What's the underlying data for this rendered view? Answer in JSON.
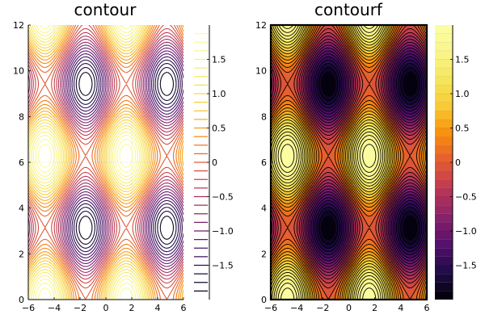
{
  "chart_data": [
    {
      "type": "contour",
      "title": "contour",
      "function": "sin(x) + cos(y)",
      "xlim": [
        -6,
        6
      ],
      "ylim": [
        0,
        12
      ],
      "xticks": [
        -6,
        -4,
        -2,
        0,
        2,
        4,
        6
      ],
      "yticks": [
        0,
        2,
        4,
        6,
        8,
        10,
        12
      ],
      "levels": [
        -1.875,
        -1.75,
        -1.625,
        -1.5,
        -1.375,
        -1.25,
        -1.125,
        -1.0,
        -0.875,
        -0.75,
        -0.625,
        -0.5,
        -0.375,
        -0.25,
        -0.125,
        0.0,
        0.125,
        0.25,
        0.375,
        0.5,
        0.625,
        0.75,
        0.875,
        1.0,
        1.125,
        1.25,
        1.375,
        1.5,
        1.625,
        1.75,
        1.875
      ],
      "filled": false,
      "colormap": "inferno",
      "colorbar": {
        "range": [
          -2,
          2
        ],
        "ticks": [
          -1.5,
          -1.0,
          -0.5,
          0,
          0.5,
          1.0,
          1.5
        ],
        "tick_labels": [
          "−1.5",
          "−1.0",
          "−0.5",
          "0",
          "0.5",
          "1.0",
          "1.5"
        ]
      },
      "tick_labels_x": [
        "−6",
        "−4",
        "−2",
        "0",
        "2",
        "4",
        "6"
      ],
      "tick_labels_y": [
        "0",
        "2",
        "4",
        "6",
        "8",
        "10",
        "12"
      ]
    },
    {
      "type": "contourf",
      "title": "contourf",
      "function": "sin(x) + cos(y)",
      "xlim": [
        -6,
        6
      ],
      "ylim": [
        0,
        12
      ],
      "xticks": [
        -6,
        -4,
        -2,
        0,
        2,
        4,
        6
      ],
      "yticks": [
        0,
        2,
        4,
        6,
        8,
        10,
        12
      ],
      "levels": [
        -1.875,
        -1.75,
        -1.625,
        -1.5,
        -1.375,
        -1.25,
        -1.125,
        -1.0,
        -0.875,
        -0.75,
        -0.625,
        -0.5,
        -0.375,
        -0.25,
        -0.125,
        0.0,
        0.125,
        0.25,
        0.375,
        0.5,
        0.625,
        0.75,
        0.875,
        1.0,
        1.125,
        1.25,
        1.375,
        1.5,
        1.625,
        1.75,
        1.875
      ],
      "filled": true,
      "line_color": "#000000",
      "colormap": "inferno",
      "colorbar": {
        "range": [
          -2,
          2
        ],
        "ticks": [
          -1.5,
          -1.0,
          -0.5,
          0,
          0.5,
          1.0,
          1.5
        ],
        "tick_labels": [
          "−1.5",
          "−1.0",
          "−0.5",
          "0",
          "0.5",
          "1.0",
          "1.5"
        ]
      },
      "tick_labels_x": [
        "−6",
        "−4",
        "−2",
        "0",
        "2",
        "4",
        "6"
      ],
      "tick_labels_y": [
        "0",
        "2",
        "4",
        "6",
        "8",
        "10",
        "12"
      ]
    }
  ]
}
